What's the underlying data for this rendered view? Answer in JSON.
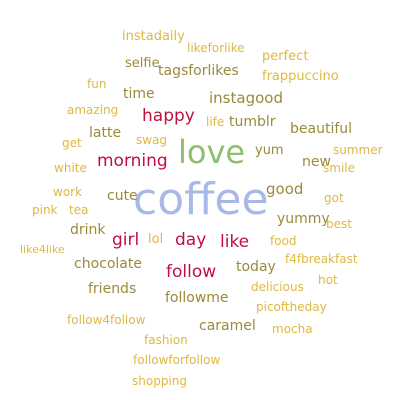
{
  "colors": {
    "purple": "#a8b8e8",
    "green": "#8fbf6e",
    "crimson": "#c01040",
    "olive": "#9a8a3a",
    "gold": "#e0b840"
  },
  "words": [
    {
      "text": "coffee",
      "color": "purple",
      "weight": 5
    },
    {
      "text": "love",
      "color": "green",
      "weight": 4
    },
    {
      "text": "happy",
      "color": "crimson",
      "weight": 3
    },
    {
      "text": "morning",
      "color": "crimson",
      "weight": 3
    },
    {
      "text": "girl",
      "color": "crimson",
      "weight": 3
    },
    {
      "text": "day",
      "color": "crimson",
      "weight": 3
    },
    {
      "text": "like",
      "color": "crimson",
      "weight": 3
    },
    {
      "text": "follow",
      "color": "crimson",
      "weight": 3
    },
    {
      "text": "instadaily",
      "color": "gold",
      "weight": 1
    },
    {
      "text": "likeforlike",
      "color": "gold",
      "weight": 1
    },
    {
      "text": "selfie",
      "color": "olive",
      "weight": 1
    },
    {
      "text": "perfect",
      "color": "gold",
      "weight": 1
    },
    {
      "text": "tagsforlikes",
      "color": "olive",
      "weight": 2
    },
    {
      "text": "fun",
      "color": "gold",
      "weight": 1
    },
    {
      "text": "frappuccino",
      "color": "gold",
      "weight": 1
    },
    {
      "text": "time",
      "color": "olive",
      "weight": 2
    },
    {
      "text": "instagood",
      "color": "olive",
      "weight": 2
    },
    {
      "text": "amazing",
      "color": "gold",
      "weight": 1
    },
    {
      "text": "life",
      "color": "gold",
      "weight": 1
    },
    {
      "text": "tumblr",
      "color": "olive",
      "weight": 2
    },
    {
      "text": "latte",
      "color": "olive",
      "weight": 2
    },
    {
      "text": "swag",
      "color": "gold",
      "weight": 1
    },
    {
      "text": "beautiful",
      "color": "olive",
      "weight": 2
    },
    {
      "text": "get",
      "color": "gold",
      "weight": 1
    },
    {
      "text": "yum",
      "color": "olive",
      "weight": 2
    },
    {
      "text": "summer",
      "color": "gold",
      "weight": 1
    },
    {
      "text": "new",
      "color": "olive",
      "weight": 2
    },
    {
      "text": "white",
      "color": "gold",
      "weight": 1
    },
    {
      "text": "smile",
      "color": "gold",
      "weight": 1
    },
    {
      "text": "cute",
      "color": "olive",
      "weight": 2
    },
    {
      "text": "work",
      "color": "gold",
      "weight": 1
    },
    {
      "text": "good",
      "color": "olive",
      "weight": 2
    },
    {
      "text": "got",
      "color": "gold",
      "weight": 1
    },
    {
      "text": "pink",
      "color": "gold",
      "weight": 1
    },
    {
      "text": "tea",
      "color": "gold",
      "weight": 1
    },
    {
      "text": "yummy",
      "color": "olive",
      "weight": 2
    },
    {
      "text": "best",
      "color": "gold",
      "weight": 1
    },
    {
      "text": "drink",
      "color": "olive",
      "weight": 2
    },
    {
      "text": "lol",
      "color": "gold",
      "weight": 1
    },
    {
      "text": "food",
      "color": "gold",
      "weight": 1
    },
    {
      "text": "like4like",
      "color": "gold",
      "weight": 1
    },
    {
      "text": "f4fbreakfast",
      "color": "gold",
      "weight": 1
    },
    {
      "text": "chocolate",
      "color": "olive",
      "weight": 2
    },
    {
      "text": "today",
      "color": "olive",
      "weight": 2
    },
    {
      "text": "hot",
      "color": "gold",
      "weight": 1
    },
    {
      "text": "friends",
      "color": "olive",
      "weight": 2
    },
    {
      "text": "delicious",
      "color": "gold",
      "weight": 1
    },
    {
      "text": "followme",
      "color": "olive",
      "weight": 2
    },
    {
      "text": "picoftheday",
      "color": "gold",
      "weight": 1
    },
    {
      "text": "follow4follow",
      "color": "gold",
      "weight": 1
    },
    {
      "text": "caramel",
      "color": "olive",
      "weight": 2
    },
    {
      "text": "mocha",
      "color": "gold",
      "weight": 1
    },
    {
      "text": "fashion",
      "color": "gold",
      "weight": 1
    },
    {
      "text": "followforfollow",
      "color": "gold",
      "weight": 1
    },
    {
      "text": "shopping",
      "color": "gold",
      "weight": 1
    }
  ]
}
